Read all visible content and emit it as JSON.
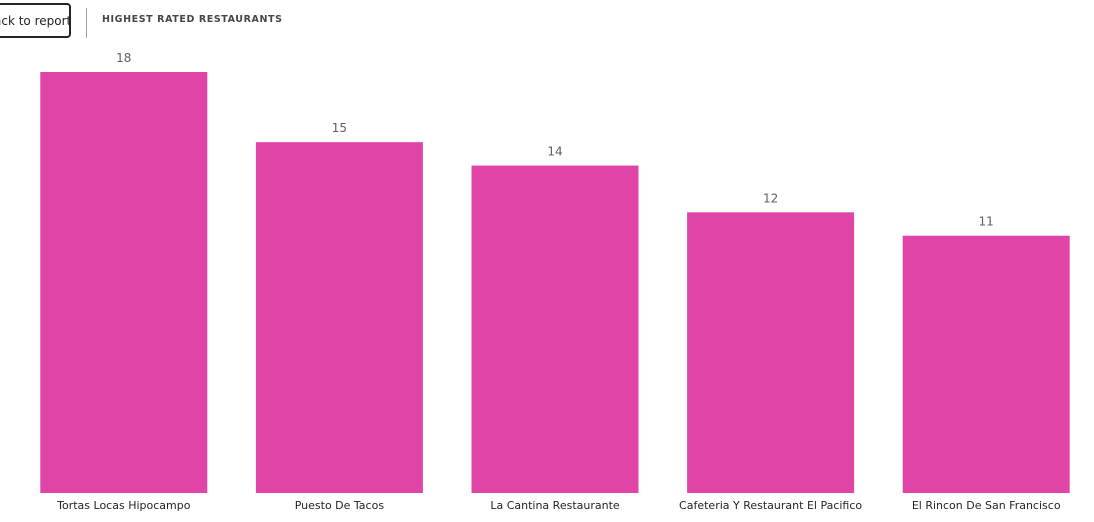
{
  "header": {
    "back_label": "Back to report",
    "title": "HIGHEST RATED RESTAURANTS"
  },
  "colors": {
    "bar": "#e044a7",
    "value_label": "#605e5c",
    "category_label": "#252423"
  },
  "chart_data": {
    "type": "bar",
    "title": "HIGHEST RATED RESTAURANTS",
    "categories": [
      "Tortas Locas Hipocampo",
      "Puesto De Tacos",
      "La Cantina Restaurante",
      "Cafeteria Y Restaurant El Pacifico",
      "El Rincon De San Francisco"
    ],
    "values": [
      18,
      15,
      14,
      12,
      11
    ],
    "ylim": [
      0,
      18
    ],
    "grid": false,
    "legend": "none",
    "data_labels": true
  }
}
